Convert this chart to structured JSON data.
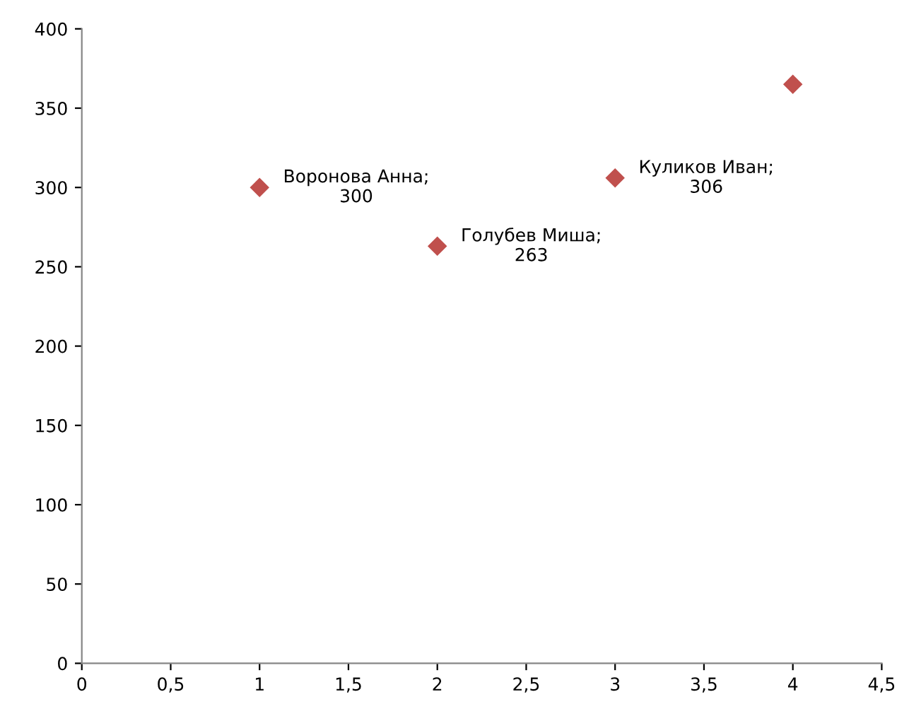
{
  "chart_data": {
    "type": "scatter",
    "x": [
      1,
      2,
      3,
      4
    ],
    "values": [
      300,
      263,
      306,
      365
    ],
    "color": "#c0504d",
    "marker": "diamond",
    "value_labels": [
      "Воронова Анна;\n300",
      "Голубев Миша;\n263",
      "Куликов Иван;\n306",
      null
    ],
    "xlim": [
      0,
      4.5
    ],
    "xticks": [
      0,
      {
        "value": 0.5,
        "label": "0,5"
      },
      1,
      {
        "value": 1.5,
        "label": "1,5"
      },
      2,
      {
        "value": 2.5,
        "label": "2,5"
      },
      3,
      {
        "value": 3.5,
        "label": "3,5"
      },
      4,
      {
        "value": 4.5,
        "label": "4,5"
      }
    ],
    "ylim": [
      0,
      400
    ],
    "yticks": [
      0,
      50,
      100,
      150,
      200,
      250,
      300,
      350,
      400
    ],
    "grid": false,
    "legend": false
  }
}
